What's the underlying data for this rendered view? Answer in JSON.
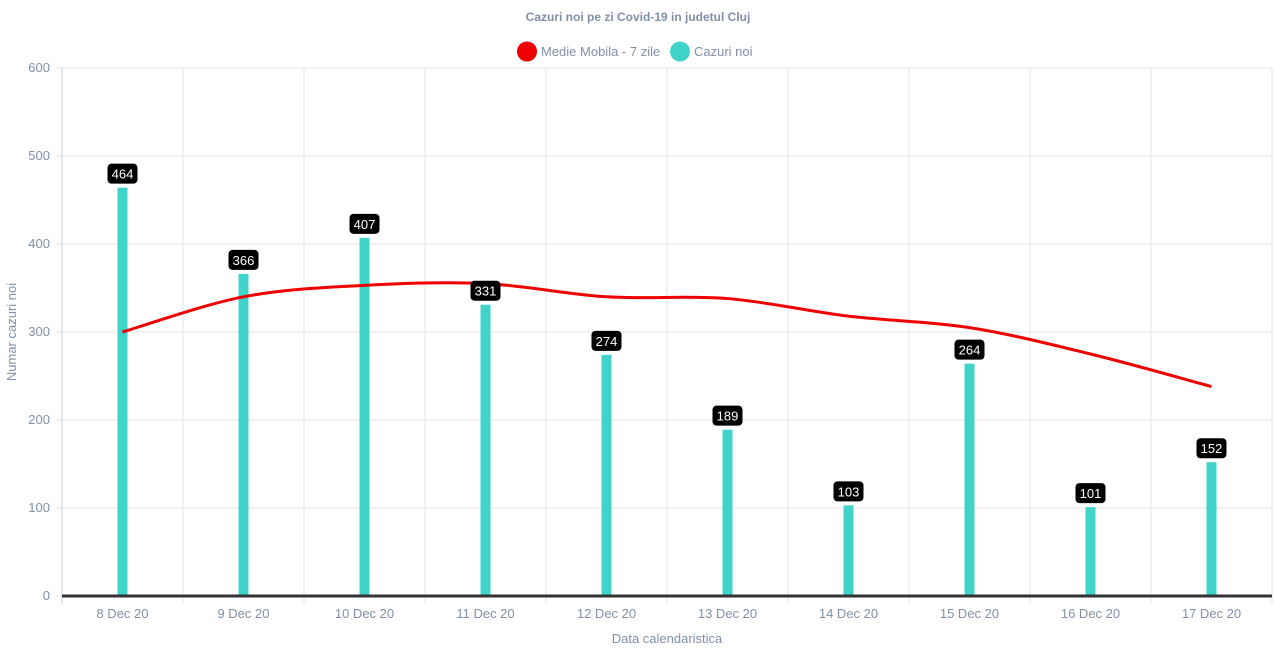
{
  "chart_data": {
    "type": "bar",
    "title": "Cazuri noi pe zi Covid-19 in judetul Cluj",
    "xlabel": "Data calendaristica",
    "ylabel": "Numar cazuri noi",
    "ylim": [
      0,
      600
    ],
    "yticks": [
      "0",
      "100",
      "200",
      "300",
      "400",
      "500",
      "600"
    ],
    "categories": [
      "8 Dec 20",
      "9 Dec 20",
      "10 Dec 20",
      "11 Dec 20",
      "12 Dec 20",
      "13 Dec 20",
      "14 Dec 20",
      "15 Dec 20",
      "16 Dec 20",
      "17 Dec 20"
    ],
    "grid": true,
    "legend_position": "top",
    "series": [
      {
        "name": "Medie Mobila - 7 zile",
        "kind": "line",
        "color": "#ee0000",
        "values": [
          300,
          340,
          353,
          355,
          340,
          338,
          318,
          305,
          275,
          238
        ]
      },
      {
        "name": "Cazuri noi",
        "kind": "bar",
        "color": "#40d3c9",
        "values": [
          464,
          366,
          407,
          331,
          274,
          189,
          103,
          264,
          101,
          152
        ],
        "labels": [
          "464",
          "366",
          "407",
          "331",
          "274",
          "189",
          "103",
          "264",
          "101",
          "152"
        ]
      }
    ]
  }
}
